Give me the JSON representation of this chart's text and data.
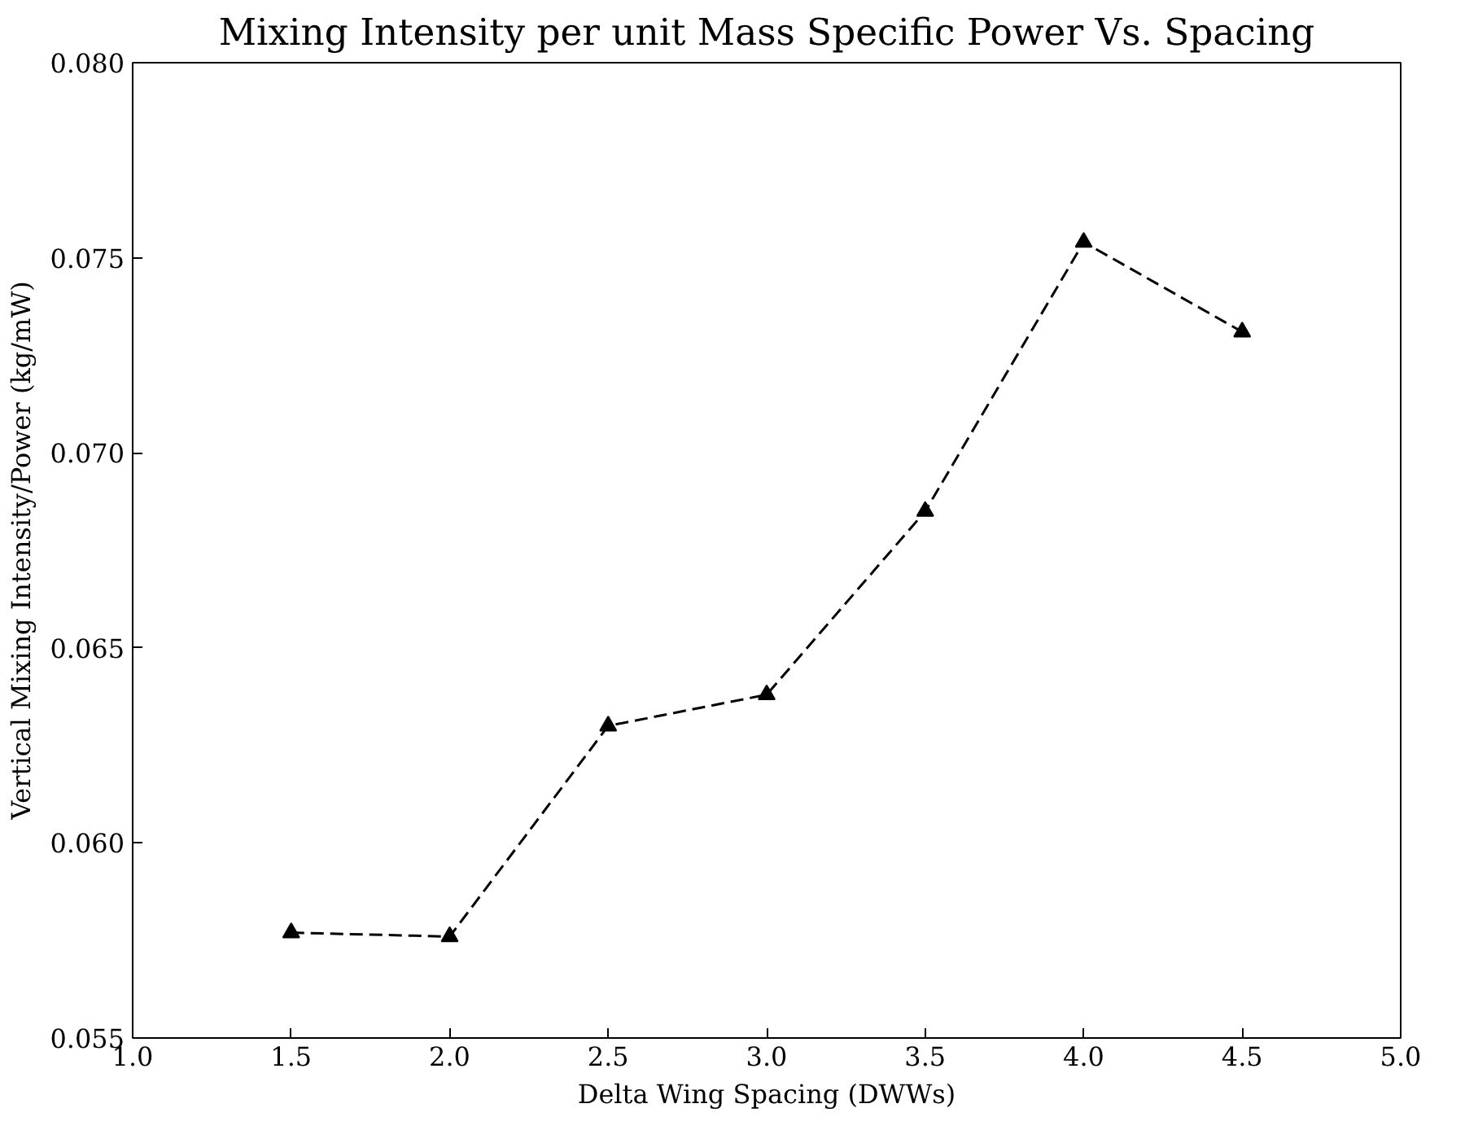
{
  "chart_data": {
    "type": "line",
    "title": "Mixing Intensity per unit Mass Specific Power Vs. Spacing",
    "xlabel": "Delta Wing Spacing (DWWs)",
    "ylabel": "Vertical Mixing Intensity/Power (kg/mW)",
    "x": [
      1.5,
      2.0,
      2.5,
      3.0,
      3.5,
      4.0,
      4.5
    ],
    "series": [
      {
        "color": "#000000",
        "values": [
          0.0577,
          0.0576,
          0.063,
          0.0638,
          0.0685,
          0.0754,
          0.0731
        ]
      }
    ],
    "xlim": [
      1.0,
      5.0
    ],
    "xticks": [
      {
        "value": 1.0,
        "label": "1.0"
      },
      {
        "value": 1.5,
        "label": "1.5"
      },
      {
        "value": 2.0,
        "label": "2.0"
      },
      {
        "value": 2.5,
        "label": "2.5"
      },
      {
        "value": 3.0,
        "label": "3.0"
      },
      {
        "value": 3.5,
        "label": "3.5"
      },
      {
        "value": 4.0,
        "label": "4.0"
      },
      {
        "value": 4.5,
        "label": "4.5"
      },
      {
        "value": 5.0,
        "label": "5.0"
      }
    ],
    "ylim": [
      0.055,
      0.08
    ],
    "yticks": [
      {
        "value": 0.055,
        "label": "0.055"
      },
      {
        "value": 0.06,
        "label": "0.060"
      },
      {
        "value": 0.065,
        "label": "0.065"
      },
      {
        "value": 0.07,
        "label": "0.070"
      },
      {
        "value": 0.075,
        "label": "0.075"
      },
      {
        "value": 0.08,
        "label": "0.080"
      }
    ],
    "marker": "triangle",
    "line_style": "dashed",
    "grid": false
  }
}
